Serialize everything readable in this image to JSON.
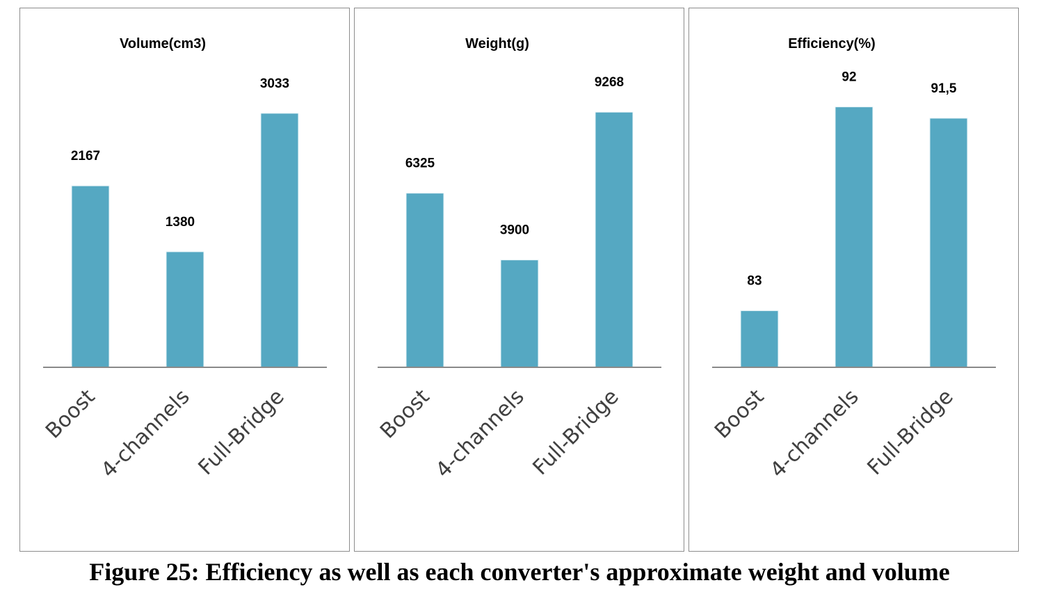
{
  "colors": {
    "bar": "#55a8c2",
    "bar_edge": "#e8f4f8",
    "axis": "#898989"
  },
  "chart_data": [
    {
      "type": "bar",
      "title": "Volume(cm3)",
      "categories": [
        "Boost",
        "4-channels",
        "Full-Bridge"
      ],
      "values": [
        2167,
        1380,
        3033
      ],
      "value_labels": [
        "2167",
        "1380",
        "3033"
      ],
      "ylim": [
        0,
        3580
      ],
      "grid": false,
      "legend": "none"
    },
    {
      "type": "bar",
      "title": "Weight(g)",
      "categories": [
        "Boost",
        "4-channels",
        "Full-Bridge"
      ],
      "values": [
        6325,
        3900,
        9268
      ],
      "value_labels": [
        "6325",
        "3900",
        "9268"
      ],
      "ylim": [
        0,
        10890
      ],
      "grid": false,
      "legend": "none"
    },
    {
      "type": "bar",
      "title": "Efficiency(%)",
      "categories": [
        "Boost",
        "4-channels",
        "Full-Bridge"
      ],
      "values": [
        83,
        92,
        91.5
      ],
      "value_labels": [
        "83",
        "92",
        "91,5"
      ],
      "ylim": [
        80.5,
        93.74
      ],
      "grid": false,
      "legend": "none"
    }
  ],
  "caption": "Figure 25: Efficiency as well as each converter's approximate weight and volume"
}
